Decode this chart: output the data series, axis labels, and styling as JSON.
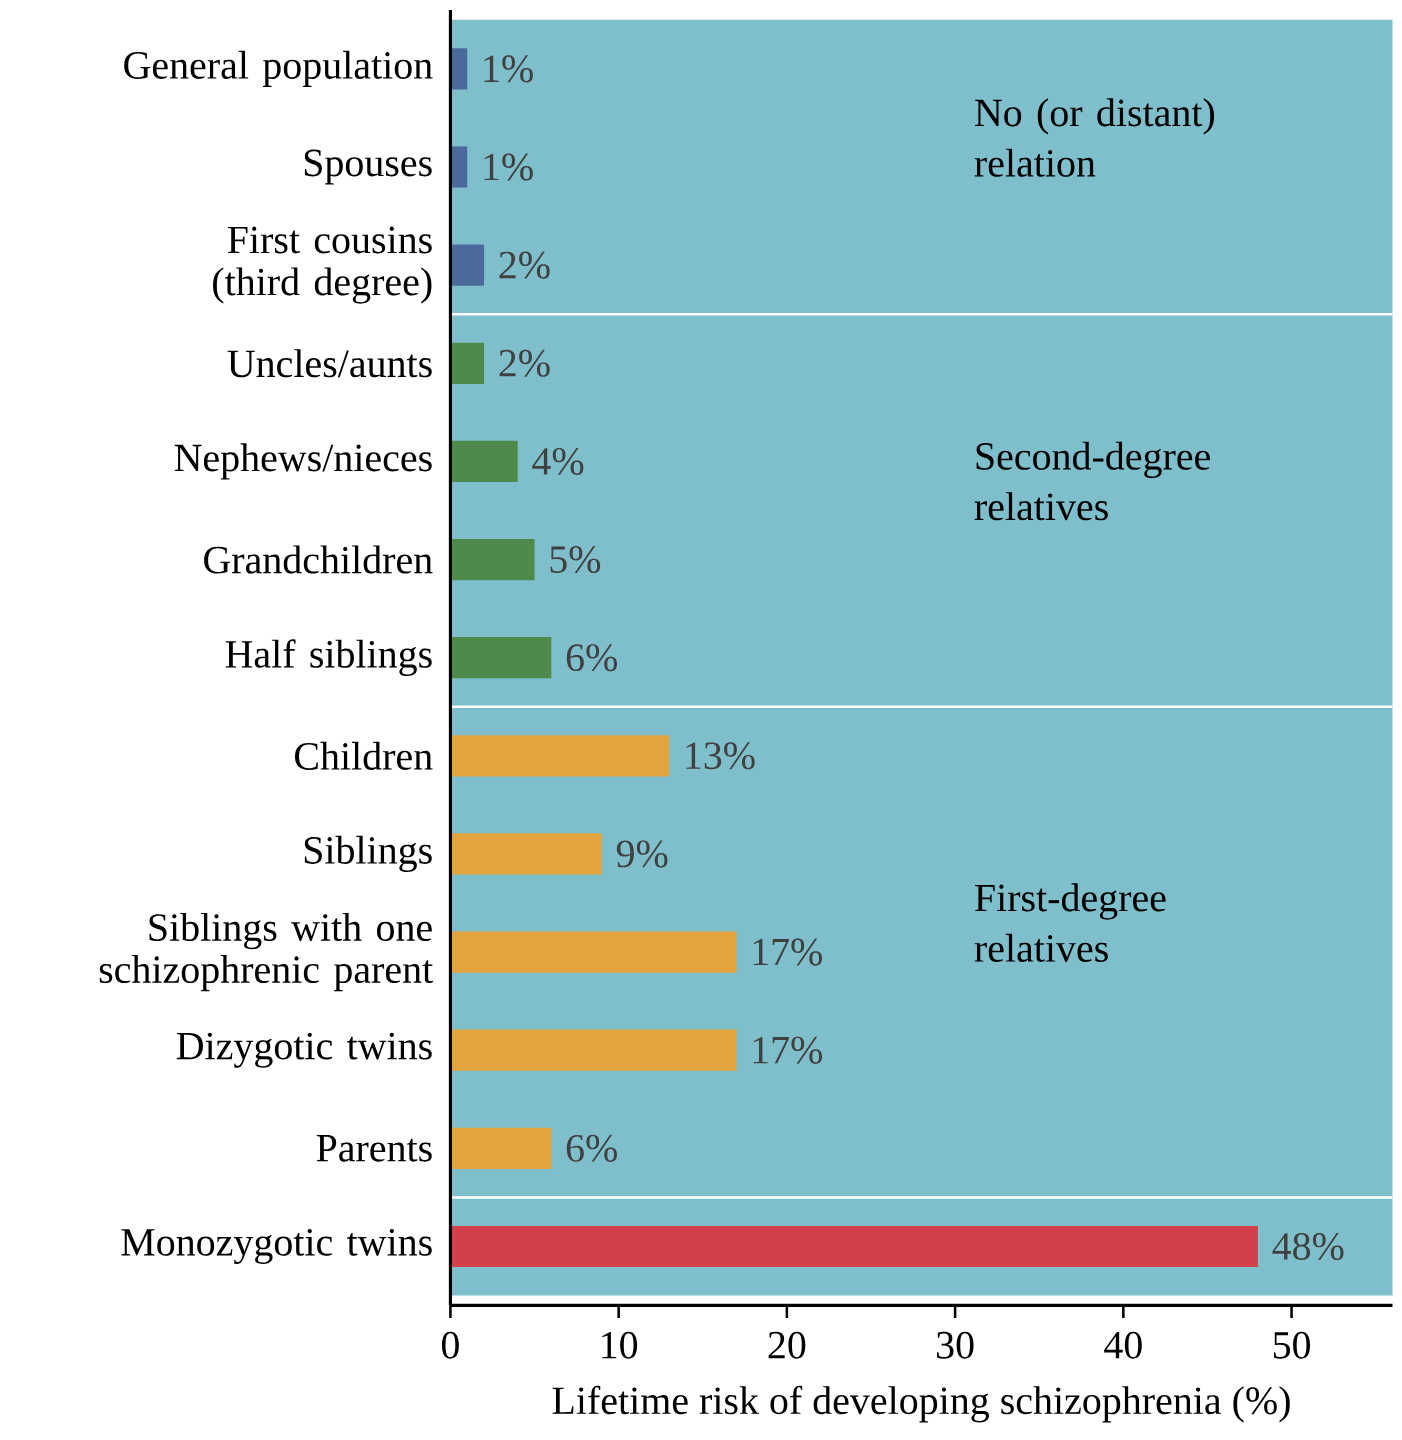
{
  "chart_data": {
    "type": "bar",
    "orientation": "horizontal",
    "xlabel": "Lifetime risk of developing schizophrenia (%)",
    "categories": [
      "General population",
      "Spouses",
      "First cousins (third degree)",
      "Uncles/aunts",
      "Nephews/nieces",
      "Grandchildren",
      "Half siblings",
      "Children",
      "Siblings",
      "Siblings with one schizophrenic parent",
      "Dizygotic twins",
      "Parents",
      "Monozygotic twins"
    ],
    "values": [
      1,
      1,
      2,
      2,
      4,
      5,
      6,
      13,
      9,
      17,
      17,
      6,
      48
    ],
    "colors": [
      "#4a6a9c",
      "#4a6a9c",
      "#4a6a9c",
      "#4e8a4c",
      "#4e8a4c",
      "#4e8a4c",
      "#4e8a4c",
      "#e3a43e",
      "#e3a43e",
      "#e3a43e",
      "#e3a43e",
      "#e3a43e",
      "#d2404c"
    ],
    "value_labels": [
      "1%",
      "1%",
      "2%",
      "2%",
      "4%",
      "5%",
      "6%",
      "13%",
      "9%",
      "17%",
      "17%",
      "6%",
      "48%"
    ],
    "xlim": [
      0,
      56
    ],
    "xticks": [
      0,
      10,
      20,
      30,
      40,
      50
    ],
    "grid": false,
    "bands": [
      {
        "axis": "y",
        "from": "General population",
        "to": "First cousins (third degree)",
        "label": "No (or distant) relation",
        "color": "#7fbfcc"
      },
      {
        "axis": "y",
        "from": "Uncles/aunts",
        "to": "Half siblings",
        "label": "Second-degree relatives",
        "color": "#7fbfcc"
      },
      {
        "axis": "y",
        "from": "Children",
        "to": "Parents",
        "label": "First-degree relatives",
        "color": "#7fbfcc"
      },
      {
        "axis": "y",
        "from": "Monozygotic twins",
        "to": "Monozygotic twins",
        "color": "#7fbfcc"
      }
    ]
  }
}
